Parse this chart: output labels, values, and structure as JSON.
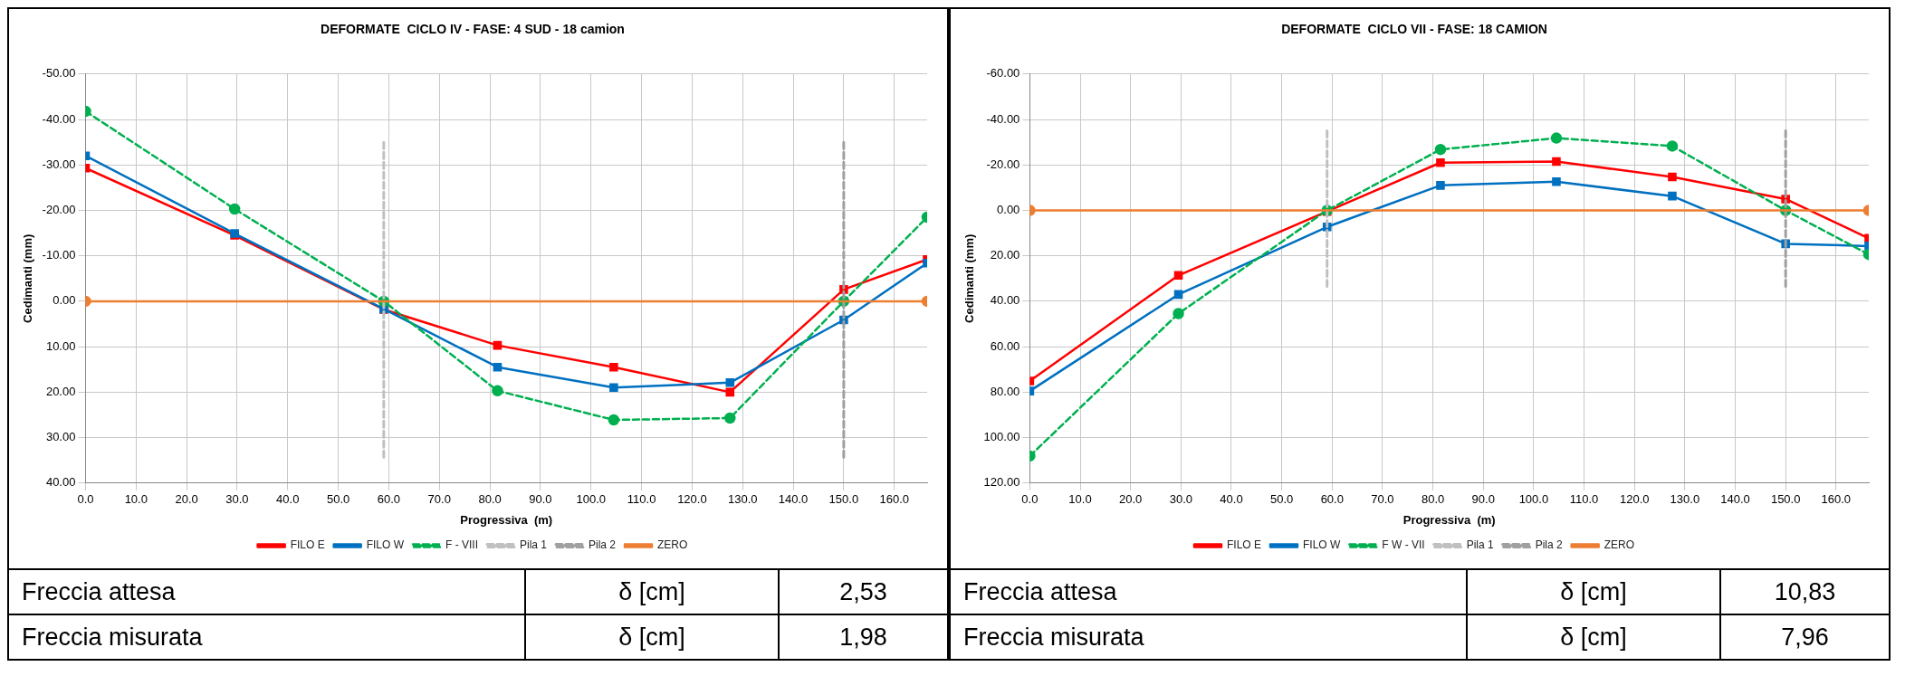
{
  "chart_data": [
    {
      "type": "line",
      "title": "DEFORMATE  CICLO IV - FASE: 4 SUD - 18 camion",
      "xlabel": "Progressiva  (m)",
      "ylabel": "Cedimanti (mm)",
      "grid": true,
      "legend": "bottom",
      "xlim": [
        0,
        166.5
      ],
      "xticks": [
        {
          "value": 0,
          "label": "0.0"
        },
        {
          "value": 10,
          "label": "10.0"
        },
        {
          "value": 20,
          "label": "20.0"
        },
        {
          "value": 30,
          "label": "30.0"
        },
        {
          "value": 40,
          "label": "40.0"
        },
        {
          "value": 50,
          "label": "50.0"
        },
        {
          "value": 60,
          "label": "60.0"
        },
        {
          "value": 70,
          "label": "70.0"
        },
        {
          "value": 80,
          "label": "80.0"
        },
        {
          "value": 90,
          "label": "90.0"
        },
        {
          "value": 100,
          "label": "100.0"
        },
        {
          "value": 110,
          "label": "110.0"
        },
        {
          "value": 120,
          "label": "120.0"
        },
        {
          "value": 130,
          "label": "130.0"
        },
        {
          "value": 140,
          "label": "140.0"
        },
        {
          "value": 150,
          "label": "150.0"
        },
        {
          "value": 160,
          "label": "160.0"
        }
      ],
      "ylim": [
        40,
        -50
      ],
      "yticks": [
        {
          "value": -50,
          "label": "-50.00"
        },
        {
          "value": -40,
          "label": "-40.00"
        },
        {
          "value": -30,
          "label": "-30.00"
        },
        {
          "value": -20,
          "label": "-20.00"
        },
        {
          "value": -10,
          "label": "-10.00"
        },
        {
          "value": 0,
          "label": "0.00"
        },
        {
          "value": 10,
          "label": "10.00"
        },
        {
          "value": 20,
          "label": "20.00"
        },
        {
          "value": 30,
          "label": "30.00"
        },
        {
          "value": 40,
          "label": "40.00"
        }
      ],
      "series": [
        {
          "name": "FILO E",
          "color": "#ff0000",
          "marker": "square",
          "line_style": "solid",
          "x": [
            0,
            29.5,
            59,
            81.5,
            104.5,
            127.5,
            150,
            166.5
          ],
          "values": [
            -29.3,
            -14.5,
            1.8,
            9.7,
            14.5,
            20.0,
            -2.6,
            -9.2
          ]
        },
        {
          "name": "FILO W",
          "color": "#0070c0",
          "marker": "square",
          "line_style": "solid",
          "x": [
            0,
            29.5,
            59,
            81.5,
            104.5,
            127.5,
            150,
            166.5
          ],
          "values": [
            -32.0,
            -14.9,
            1.7,
            14.5,
            19.0,
            17.9,
            4.1,
            -8.4
          ]
        },
        {
          "name": "F - VIII",
          "color": "#00b050",
          "marker": "circle",
          "line_style": "dashed",
          "x": [
            0,
            29.5,
            59,
            81.5,
            104.5,
            127.5,
            150,
            166.5
          ],
          "values": [
            -41.8,
            -20.3,
            0,
            19.7,
            26.1,
            25.7,
            0,
            -18.5
          ]
        },
        {
          "name": "Pila 1",
          "color": "#c0c0c0",
          "marker": "none",
          "line_style": "dashed",
          "x": [
            59,
            59
          ],
          "values": [
            -35,
            35
          ]
        },
        {
          "name": "Pila 2",
          "color": "#a0a0a0",
          "marker": "none",
          "line_style": "dashed",
          "x": [
            150,
            150
          ],
          "values": [
            -35,
            35
          ]
        },
        {
          "name": "ZERO",
          "color": "#ed7d31",
          "marker": "circle",
          "line_style": "solid",
          "x": [
            0,
            166.5
          ],
          "values": [
            0,
            0
          ]
        }
      ],
      "annotations": [
        "Freccia attesa",
        "δ [cm]",
        "2,53",
        "Freccia misurata",
        "δ [cm]",
        "1,98"
      ]
    },
    {
      "type": "line",
      "title": "DEFORMATE  CICLO VII - FASE: 18 CAMION",
      "xlabel": "Progressiva  (m)",
      "ylabel": "Cedimanti (mm)",
      "grid": true,
      "legend": "bottom",
      "xlim": [
        0,
        166.5
      ],
      "xticks": [
        {
          "value": 0,
          "label": "0.0"
        },
        {
          "value": 10,
          "label": "10.0"
        },
        {
          "value": 20,
          "label": "20.0"
        },
        {
          "value": 30,
          "label": "30.0"
        },
        {
          "value": 40,
          "label": "40.0"
        },
        {
          "value": 50,
          "label": "50.0"
        },
        {
          "value": 60,
          "label": "60.0"
        },
        {
          "value": 70,
          "label": "70.0"
        },
        {
          "value": 80,
          "label": "80.0"
        },
        {
          "value": 90,
          "label": "90.0"
        },
        {
          "value": 100,
          "label": "100.0"
        },
        {
          "value": 110,
          "label": "110.0"
        },
        {
          "value": 120,
          "label": "120.0"
        },
        {
          "value": 130,
          "label": "130.0"
        },
        {
          "value": 140,
          "label": "140.0"
        },
        {
          "value": 150,
          "label": "150.0"
        },
        {
          "value": 160,
          "label": "160.0"
        }
      ],
      "ylim": [
        120,
        -60
      ],
      "yticks": [
        {
          "value": -60,
          "label": "-60.00"
        },
        {
          "value": -40,
          "label": "-40.00"
        },
        {
          "value": -20,
          "label": "-20.00"
        },
        {
          "value": 0,
          "label": "0.00"
        },
        {
          "value": 20,
          "label": "20.00"
        },
        {
          "value": 40,
          "label": "40.00"
        },
        {
          "value": 60,
          "label": "60.00"
        },
        {
          "value": 80,
          "label": "80.00"
        },
        {
          "value": 100,
          "label": "100.00"
        },
        {
          "value": 120,
          "label": "120.00"
        }
      ],
      "series": [
        {
          "name": "FILO E",
          "color": "#ff0000",
          "marker": "square",
          "line_style": "solid",
          "x": [
            0,
            29.5,
            59,
            81.5,
            104.5,
            127.5,
            150,
            166.5
          ],
          "values": [
            75.1,
            28.6,
            0.5,
            -21.0,
            -21.5,
            -14.7,
            -5.0,
            12.3
          ]
        },
        {
          "name": "FILO W",
          "color": "#0070c0",
          "marker": "square",
          "line_style": "solid",
          "x": [
            0,
            29.5,
            59,
            81.5,
            104.5,
            127.5,
            150,
            166.5
          ],
          "values": [
            79.5,
            37.0,
            7.3,
            -11.0,
            -12.6,
            -6.3,
            14.7,
            15.7
          ]
        },
        {
          "name": "F W - VII",
          "color": "#00b050",
          "marker": "circle",
          "line_style": "dashed",
          "x": [
            0,
            29.5,
            59,
            81.5,
            104.5,
            127.5,
            150,
            166.5
          ],
          "values": [
            108.1,
            45.4,
            0,
            -26.8,
            -31.8,
            -28.3,
            0,
            19.4
          ]
        },
        {
          "name": "Pila 1",
          "color": "#c0c0c0",
          "marker": "none",
          "line_style": "dashed",
          "x": [
            59,
            59
          ],
          "values": [
            -35,
            35
          ]
        },
        {
          "name": "Pila 2",
          "color": "#a0a0a0",
          "marker": "none",
          "line_style": "dashed",
          "x": [
            150,
            150
          ],
          "values": [
            -35,
            35
          ]
        },
        {
          "name": "ZERO",
          "color": "#ed7d31",
          "marker": "circle",
          "line_style": "solid",
          "x": [
            0,
            166.5
          ],
          "values": [
            0,
            0
          ]
        }
      ],
      "annotations": [
        "Freccia attesa",
        "δ [cm]",
        "10,83",
        "Freccia misurata",
        "δ [cm]",
        "7,96"
      ]
    }
  ]
}
